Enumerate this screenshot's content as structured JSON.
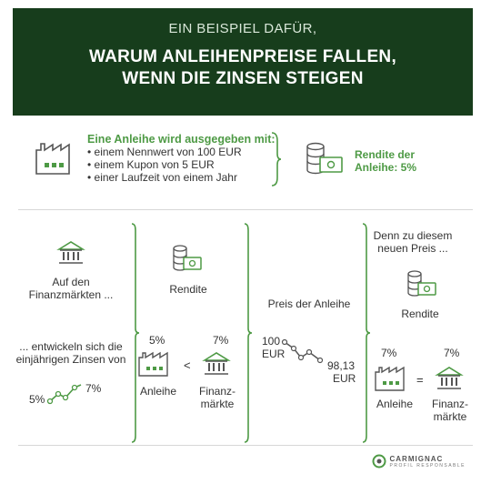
{
  "header": {
    "kicker": "EIN BEISPIEL DAFÜR,",
    "title_line1": "WARUM ANLEIHENPREISE FALLEN,",
    "title_line2": "WENN DIE ZINSEN STEIGEN"
  },
  "intro": {
    "heading": "Eine Anleihe wird ausgegeben mit:",
    "bullets": [
      "• einem Nennwert von 100 EUR",
      "• einem Kupon von 5 EUR",
      "• einer Laufzeit von einem Jahr"
    ],
    "rendite_line1": "Rendite der",
    "rendite_line2": "Anleihe: 5%"
  },
  "col1": {
    "label_line1": "Auf den",
    "label_line2": "Finanzmärkten ...",
    "dev_line1": "... entwickeln sich die",
    "dev_line2": "einjährigen Zinsen von",
    "from": "5%",
    "to": "7%"
  },
  "col2": {
    "rendite": "Rendite",
    "left_pct": "5%",
    "right_pct": "7%",
    "operator": "<",
    "left_label": "Anleihe",
    "right_label_line1": "Finanz-",
    "right_label_line2": "märkte"
  },
  "col3": {
    "label": "Preis der Anleihe",
    "start_value": "100",
    "start_unit": "EUR",
    "end_value": "98,13",
    "end_unit": "EUR"
  },
  "col4": {
    "intro_line1": "Denn zu diesem",
    "intro_line2": "neuen Preis ...",
    "rendite": "Rendite",
    "left_pct": "7%",
    "right_pct": "7%",
    "operator": "=",
    "left_label": "Anleihe",
    "right_label_line1": "Finanz-",
    "right_label_line2": "märkte"
  },
  "footer": {
    "brand": "CARMIGNAC",
    "tagline": "PROFIL RESPONSABLE"
  },
  "colors": {
    "header_bg": "#173d1c",
    "accent_green": "#4e9a45",
    "divider": "#d7d7d7"
  }
}
